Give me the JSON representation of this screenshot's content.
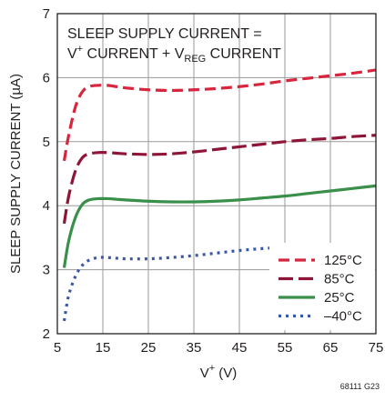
{
  "chart_data": {
    "type": "line",
    "xlabel": {
      "main": "V",
      "sup": "+",
      "unit": " (V)"
    },
    "ylabel": "SLEEP SUPPLY CURRENT (µA)",
    "xlim": [
      5,
      75
    ],
    "ylim": [
      2,
      7
    ],
    "xticks": [
      5,
      15,
      25,
      35,
      45,
      55,
      65,
      75
    ],
    "yticks": [
      2,
      3,
      4,
      5,
      6,
      7
    ],
    "grid": true,
    "legend_position": "bottom-right",
    "annotation": {
      "line1": "SLEEP SUPPLY CURRENT =",
      "line2_part1": "V",
      "line2_sup": "+",
      "line2_part2": " CURRENT + V",
      "line2_sub": "REG",
      "line2_part3": " CURRENT"
    },
    "figure_id": "68111 G23",
    "series": [
      {
        "name": "125°C",
        "color": "#d7263d",
        "dash": "dash",
        "x": [
          6.5,
          7.5,
          9,
          10.5,
          12,
          14,
          16,
          18,
          20,
          25,
          30,
          35,
          40,
          45,
          50,
          55,
          60,
          65,
          70,
          75
        ],
        "y": [
          4.7,
          5.1,
          5.55,
          5.78,
          5.86,
          5.88,
          5.88,
          5.86,
          5.84,
          5.81,
          5.8,
          5.81,
          5.83,
          5.86,
          5.9,
          5.95,
          5.99,
          6.03,
          6.07,
          6.12
        ]
      },
      {
        "name": "85°C",
        "color": "#8e1537",
        "dash": "longdash",
        "x": [
          6.5,
          7.5,
          9,
          10.5,
          12,
          14,
          16,
          18,
          20,
          25,
          30,
          35,
          40,
          45,
          50,
          55,
          60,
          65,
          70,
          75
        ],
        "y": [
          3.72,
          4.15,
          4.55,
          4.75,
          4.81,
          4.83,
          4.83,
          4.82,
          4.81,
          4.8,
          4.81,
          4.84,
          4.88,
          4.92,
          4.96,
          5.0,
          5.03,
          5.05,
          5.08,
          5.1
        ]
      },
      {
        "name": "25°C",
        "color": "#3a8f4a",
        "dash": "solid",
        "x": [
          6.5,
          7.5,
          9,
          10.5,
          12,
          14,
          16,
          18,
          20,
          25,
          30,
          35,
          40,
          45,
          50,
          55,
          60,
          65,
          70,
          75
        ],
        "y": [
          3.03,
          3.45,
          3.82,
          4.02,
          4.09,
          4.11,
          4.11,
          4.1,
          4.09,
          4.07,
          4.06,
          4.06,
          4.07,
          4.09,
          4.12,
          4.15,
          4.19,
          4.23,
          4.27,
          4.31
        ]
      },
      {
        "name": "–40°C",
        "color": "#3a58a8",
        "dash": "dot",
        "x": [
          6.5,
          7.5,
          9,
          10.5,
          12,
          14,
          16,
          18,
          20,
          25,
          30,
          35,
          40,
          45,
          50,
          55,
          60,
          65,
          70,
          75
        ],
        "y": [
          2.2,
          2.6,
          2.9,
          3.07,
          3.15,
          3.19,
          3.19,
          3.18,
          3.17,
          3.17,
          3.19,
          3.22,
          3.26,
          3.3,
          3.33,
          3.35,
          3.36,
          3.36,
          3.36,
          3.35
        ]
      }
    ]
  }
}
